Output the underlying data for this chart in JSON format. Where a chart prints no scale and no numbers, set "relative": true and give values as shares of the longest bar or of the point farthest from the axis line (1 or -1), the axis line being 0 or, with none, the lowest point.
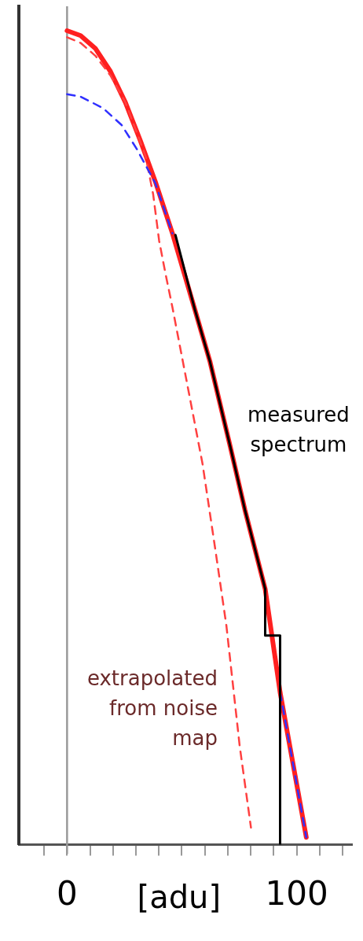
{
  "chart_data": {
    "type": "line",
    "relative": true,
    "xlabel": "[adu]",
    "xlim": [
      -21,
      124
    ],
    "xticks": [
      {
        "value": -10,
        "label": null
      },
      0,
      {
        "value": 10,
        "label": null
      },
      {
        "value": 20,
        "label": null
      },
      {
        "value": 30,
        "label": null
      },
      {
        "value": 40,
        "label": null
      },
      {
        "value": 50,
        "label": null
      },
      {
        "value": 60,
        "label": null
      },
      {
        "value": 70,
        "label": null
      },
      {
        "value": 80,
        "label": null
      },
      {
        "value": 90,
        "label": null
      },
      100,
      {
        "value": 110,
        "label": null
      },
      {
        "value": 120,
        "label": null
      }
    ],
    "grid": false,
    "legend": false,
    "marker": "none",
    "ref_lines": [
      {
        "axis": "x",
        "value": 0,
        "color": "#999999"
      }
    ],
    "series": [
      {
        "color": "#3030ff",
        "line_style": "dashed",
        "x": [
          0,
          5.9,
          15.6,
          23.8,
          30.3,
          38.4,
          45.9,
          55.7,
          62.2,
          71.0,
          77.5,
          86.3,
          92.8,
          104.2
        ],
        "values": [
          0.922,
          0.919,
          0.905,
          0.884,
          0.855,
          0.813,
          0.751,
          null,
          null,
          null,
          null,
          null,
          0.187,
          0.009
        ]
      },
      {
        "color": "#ff4040",
        "line_style": "dashed",
        "x": [
          0,
          5.9,
          12.4,
          18.9,
          25.4,
          34.2,
          37.5,
          40.1,
          42.7,
          45.9,
          51.5,
          59.0,
          64.5,
          69.4,
          75.2,
          80.1
        ],
        "values": [
          0.992,
          0.985,
          0.969,
          0.945,
          0.912,
          0.846,
          0.799,
          0.742,
          0.704,
          0.66,
          0.578,
          0.468,
          0.364,
          0.269,
          0.121,
          0.021
        ]
      },
      {
        "color": "#ff2020",
        "line_style": "solid",
        "x": [
          0,
          5.9,
          12.4,
          18.9,
          25.4,
          31.9,
          38.4,
          45.9,
          55.7,
          62.2,
          71.0,
          77.5,
          86.3,
          92.8,
          104.2
        ],
        "values": [
          1.0,
          0.994,
          0.978,
          0.95,
          0.912,
          0.865,
          0.815,
          0.751,
          0.657,
          0.594,
          0.49,
          0.411,
          0.314,
          0.187,
          0.009
        ]
      },
      {
        "color": "#000000",
        "line_style": "solid",
        "x": [
          47.2,
          55.7,
          62.2,
          71.0,
          77.5,
          86.3,
          86.3,
          92.8,
          92.8
        ],
        "values": [
          0.749,
          0.657,
          0.594,
          0.49,
          0.411,
          0.314,
          0.257,
          0.257,
          0
        ]
      }
    ],
    "annotations": [
      "measured spectrum",
      "extrapolated from noise map"
    ]
  }
}
